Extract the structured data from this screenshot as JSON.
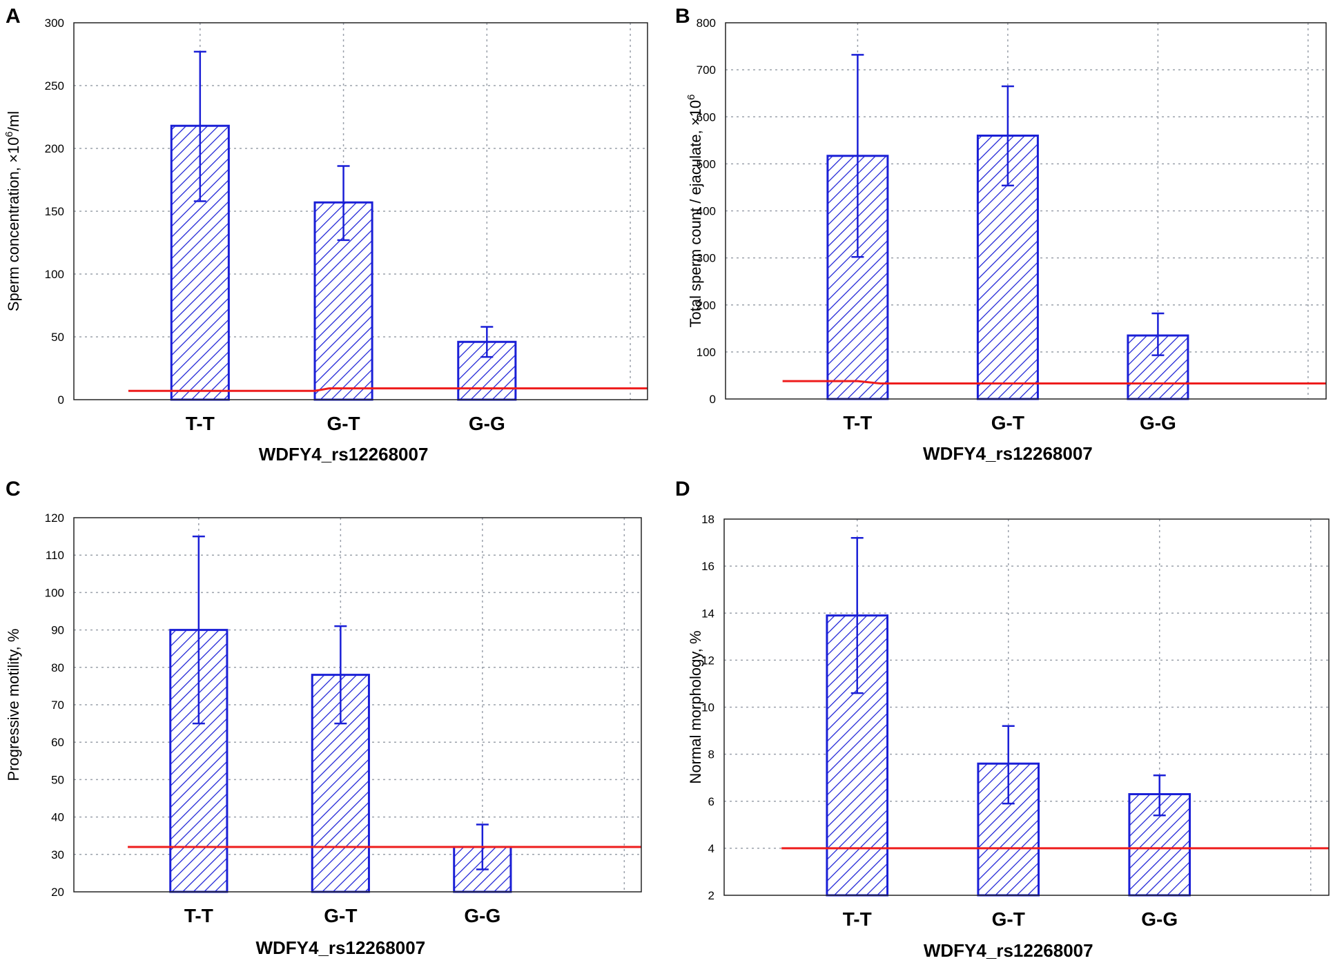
{
  "colors": {
    "bar": "#1a1fd6",
    "reference": "#ee1c1c",
    "grid": "#9aa0aa"
  },
  "chart_data": [
    {
      "panel": "A",
      "type": "bar",
      "title": "",
      "xlabel": "WDFY4_rs12268007",
      "ylabel": "Sperm concentration, ×10",
      "ylabel_sup": "6",
      "ylabel_suffix": "/ml",
      "categories": [
        "T-T",
        "G-T",
        "G-G"
      ],
      "values": [
        218,
        157,
        46
      ],
      "error_low": [
        158,
        127,
        34
      ],
      "error_high": [
        277,
        186,
        58
      ],
      "reference_line": [
        [
          -0.5,
          7
        ],
        [
          0.8,
          7
        ],
        [
          0.9,
          9
        ],
        [
          2.9,
          9
        ]
      ],
      "ylim": [
        0,
        300
      ],
      "yticks": [
        0,
        50,
        100,
        150,
        200,
        250,
        300
      ],
      "ytick_labels": [
        "0",
        "50",
        "100",
        "150",
        "200",
        "250",
        "300"
      ]
    },
    {
      "panel": "B",
      "type": "bar",
      "title": "",
      "xlabel": "WDFY4_rs12268007",
      "ylabel": "Total sperm count / ejaculate, ×10",
      "ylabel_sup": "6",
      "ylabel_suffix": "",
      "categories": [
        "T-T",
        "G-T",
        "G-G"
      ],
      "values": [
        517,
        560,
        135
      ],
      "error_low": [
        302,
        454,
        93
      ],
      "error_high": [
        732,
        665,
        182
      ],
      "reference_line": [
        [
          -0.5,
          38
        ],
        [
          0,
          38
        ],
        [
          0.15,
          33
        ],
        [
          2.9,
          33
        ]
      ],
      "ylim": [
        0,
        800
      ],
      "yticks": [
        0,
        100,
        200,
        300,
        400,
        500,
        600,
        700,
        800
      ],
      "ytick_labels": [
        "0",
        "100",
        "200",
        "300",
        "400",
        "500",
        "600",
        "700",
        "800"
      ]
    },
    {
      "panel": "C",
      "type": "bar",
      "title": "",
      "xlabel": "WDFY4_rs12268007",
      "ylabel": "Progressive motility, %",
      "ylabel_sup": "",
      "ylabel_suffix": "",
      "categories": [
        "T-T",
        "G-T",
        "G-G"
      ],
      "values": [
        90,
        78,
        32
      ],
      "error_low": [
        65,
        65,
        26
      ],
      "error_high": [
        115,
        91,
        38
      ],
      "reference_line": [
        [
          -0.5,
          32
        ],
        [
          2.9,
          32
        ]
      ],
      "ylim": [
        20,
        120
      ],
      "yticks": [
        20,
        30,
        40,
        50,
        60,
        70,
        80,
        90,
        100,
        110,
        120
      ],
      "ytick_labels": [
        "20",
        "30",
        "40",
        "50",
        "60",
        "70",
        "80",
        "90",
        "100",
        "110",
        "120"
      ]
    },
    {
      "panel": "D",
      "type": "bar",
      "title": "",
      "xlabel": "WDFY4_rs12268007",
      "ylabel": "Normal morphology, %",
      "ylabel_sup": "",
      "ylabel_suffix": "",
      "categories": [
        "T-T",
        "G-T",
        "G-G"
      ],
      "values": [
        13.9,
        7.6,
        6.3
      ],
      "error_low": [
        10.6,
        5.9,
        5.4
      ],
      "error_high": [
        17.2,
        9.2,
        7.1
      ],
      "reference_line": [
        [
          -0.5,
          4
        ],
        [
          2.9,
          4
        ]
      ],
      "ylim": [
        2,
        18
      ],
      "yticks": [
        2,
        4,
        6,
        8,
        10,
        12,
        14,
        16,
        18
      ],
      "ytick_labels": [
        "2",
        "4",
        "6",
        "8",
        "10",
        "12",
        "14",
        "16",
        "18"
      ]
    }
  ]
}
